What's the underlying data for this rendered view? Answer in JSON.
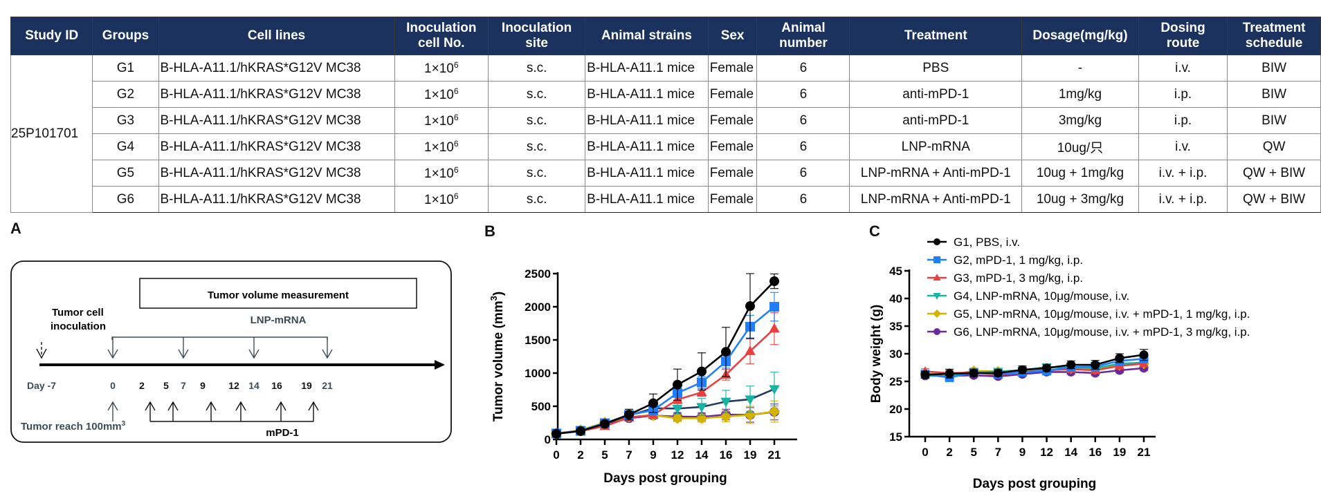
{
  "table": {
    "headers": [
      "Study ID",
      "Groups",
      "Cell lines",
      "Inoculation cell No.",
      "Inoculation site",
      "Animal strains",
      "Sex",
      "Animal number",
      "Treatment",
      "Dosage(mg/kg)",
      "Dosing route",
      "Treatment schedule"
    ],
    "header_lines": [
      [
        "Study ID"
      ],
      [
        "Groups"
      ],
      [
        "Cell lines"
      ],
      [
        "Inoculation",
        "cell No."
      ],
      [
        "Inoculation",
        "site"
      ],
      [
        "Animal strains"
      ],
      [
        "Sex"
      ],
      [
        "Animal",
        "number"
      ],
      [
        "Treatment"
      ],
      [
        "Dosage(mg/kg)"
      ],
      [
        "Dosing",
        "route"
      ],
      [
        "Treatment",
        "schedule"
      ]
    ],
    "study_id": "25P101701",
    "rows": [
      {
        "group": "G1",
        "cell_line": "B-HLA-A11.1/hKRAS*G12V MC38",
        "cell_no_base": "1×10",
        "cell_no_exp": "6",
        "site": "s.c.",
        "strain": "B-HLA-A11.1 mice",
        "sex": "Female",
        "number": "6",
        "treatment": "PBS",
        "dosage": "-",
        "route": "i.v.",
        "schedule": "BIW"
      },
      {
        "group": "G2",
        "cell_line": "B-HLA-A11.1/hKRAS*G12V MC38",
        "cell_no_base": "1×10",
        "cell_no_exp": "6",
        "site": "s.c.",
        "strain": "B-HLA-A11.1 mice",
        "sex": "Female",
        "number": "6",
        "treatment": "anti-mPD-1",
        "dosage": "1mg/kg",
        "route": "i.p.",
        "schedule": "BIW"
      },
      {
        "group": "G3",
        "cell_line": "B-HLA-A11.1/hKRAS*G12V MC38",
        "cell_no_base": "1×10",
        "cell_no_exp": "6",
        "site": "s.c.",
        "strain": "B-HLA-A11.1 mice",
        "sex": "Female",
        "number": "6",
        "treatment": "anti-mPD-1",
        "dosage": "3mg/kg",
        "route": "i.p.",
        "schedule": "BIW"
      },
      {
        "group": "G4",
        "cell_line": "B-HLA-A11.1/hKRAS*G12V MC38",
        "cell_no_base": "1×10",
        "cell_no_exp": "6",
        "site": "s.c.",
        "strain": "B-HLA-A11.1 mice",
        "sex": "Female",
        "number": "6",
        "treatment": "LNP-mRNA",
        "dosage": "10ug/只",
        "route": "i.v.",
        "schedule": "QW"
      },
      {
        "group": "G5",
        "cell_line": "B-HLA-A11.1/hKRAS*G12V MC38",
        "cell_no_base": "1×10",
        "cell_no_exp": "6",
        "site": "s.c.",
        "strain": "B-HLA-A11.1 mice",
        "sex": "Female",
        "number": "6",
        "treatment": "LNP-mRNA  + Anti-mPD-1",
        "dosage": "10ug + 1mg/kg",
        "route": "i.v. + i.p.",
        "schedule": "QW + BIW"
      },
      {
        "group": "G6",
        "cell_line": "B-HLA-A11.1/hKRAS*G12V MC38",
        "cell_no_base": "1×10",
        "cell_no_exp": "6",
        "site": "s.c.",
        "strain": "B-HLA-A11.1 mice",
        "sex": "Female",
        "number": "6",
        "treatment": "LNP-mRNA  + Anti-mPD-1",
        "dosage": "10ug + 3mg/kg",
        "route": "i.v. + i.p.",
        "schedule": "QW + BIW"
      }
    ]
  },
  "panels": {
    "a": "A",
    "b": "B",
    "c": "C"
  },
  "schematic": {
    "measurement_box": "Tumor volume measurement",
    "lnp_label": "LNP-mRNA",
    "inoculation_label_1": "Tumor cell",
    "inoculation_label_2": "inoculation",
    "reach_label": "Tumor reach 100mm",
    "reach_sup": "3",
    "mpd1_label": "mPD-1",
    "days": [
      "Day -7",
      "0",
      "2",
      "5",
      "7",
      "9",
      "12",
      "14",
      "16",
      "19",
      "21"
    ],
    "lnp_days": [
      0,
      7,
      14,
      21
    ],
    "mpd1_days": [
      2,
      5,
      9,
      12,
      16,
      19
    ]
  },
  "chart_data": [
    {
      "type": "line",
      "title": "",
      "xlabel": "Days post grouping",
      "ylabel": "Tumor volume (mm3)",
      "ylabel_main": "Tumor volume (mm",
      "ylabel_sup": "3",
      "ylabel_end": ")",
      "x": [
        0,
        2,
        5,
        7,
        9,
        12,
        14,
        16,
        19,
        21
      ],
      "x_tick_labels": [
        "0",
        "2",
        "5",
        "7",
        "9",
        "12",
        "14",
        "16",
        "19",
        "21"
      ],
      "ylim": [
        0,
        2500
      ],
      "y_ticks": [
        0,
        500,
        1000,
        1500,
        2000,
        2500
      ],
      "grid": false,
      "series": [
        {
          "name": "G1, PBS, i.v.",
          "color": "#000000",
          "marker": "circle",
          "values": [
            85,
            125,
            235,
            375,
            545,
            825,
            1025,
            1320,
            2010,
            2385
          ],
          "errors": [
            10,
            15,
            30,
            80,
            140,
            235,
            280,
            370,
            490,
            110
          ]
        },
        {
          "name": "G2, mPD-1, 1 mg/kg, i.p.",
          "color": "#1f7fff",
          "marker": "square",
          "values": [
            90,
            130,
            245,
            370,
            440,
            700,
            860,
            1175,
            1700,
            2000
          ],
          "errors": [
            10,
            15,
            25,
            40,
            60,
            110,
            90,
            100,
            170,
            215
          ]
        },
        {
          "name": "G3, mPD-1, 3 mg/kg, i.p.",
          "color": "#e8403f",
          "marker": "triangle-up",
          "values": [
            95,
            125,
            200,
            330,
            370,
            600,
            710,
            975,
            1330,
            1670
          ],
          "errors": [
            10,
            15,
            25,
            30,
            40,
            60,
            60,
            80,
            190,
            240
          ]
        },
        {
          "name": "G4, LNP-mRNA, 10μg/mouse, i.v.",
          "color": "#17b3a3",
          "line_color": "#223a63",
          "marker": "triangle-down",
          "values": [
            90,
            130,
            245,
            360,
            470,
            465,
            490,
            570,
            605,
            760
          ],
          "errors": [
            10,
            15,
            25,
            40,
            60,
            80,
            130,
            170,
            200,
            255
          ]
        },
        {
          "name": "G5, LNP-mRNA, 10μg/mouse, i.v. + mPD-1, 1 mg/kg, i.p.",
          "color": "#d4b200",
          "marker": "diamond",
          "values": [
            90,
            140,
            255,
            340,
            365,
            320,
            320,
            345,
            370,
            420
          ],
          "errors": [
            10,
            15,
            25,
            40,
            50,
            50,
            60,
            80,
            130,
            160
          ]
        },
        {
          "name": "G6, LNP-mRNA, 10μg/mouse, i.v. + mPD-1, 3 mg/kg, i.p.",
          "color": "#6a2b9a",
          "marker": "circle",
          "values": [
            90,
            130,
            235,
            320,
            360,
            345,
            340,
            375,
            370,
            415
          ],
          "errors": [
            10,
            15,
            20,
            40,
            50,
            60,
            60,
            80,
            110,
            120
          ]
        }
      ]
    },
    {
      "type": "line",
      "title": "",
      "xlabel": "Days post grouping",
      "ylabel": "Body weight (g)",
      "x": [
        0,
        2,
        5,
        7,
        9,
        12,
        14,
        16,
        19,
        21
      ],
      "x_tick_labels": [
        "0",
        "2",
        "5",
        "7",
        "9",
        "12",
        "14",
        "16",
        "19",
        "21"
      ],
      "ylim": [
        15,
        45
      ],
      "y_ticks": [
        15,
        20,
        25,
        30,
        35,
        40,
        45
      ],
      "grid": false,
      "legend_position": "top",
      "series": [
        {
          "name": "G1, PBS, i.v.",
          "color": "#000000",
          "marker": "circle",
          "values": [
            26.2,
            26.4,
            26.5,
            26.5,
            27.1,
            27.4,
            28.0,
            28.0,
            29.2,
            29.8
          ],
          "errors": [
            0.6,
            0.8,
            0.6,
            0.6,
            0.7,
            0.6,
            0.7,
            0.8,
            0.8,
            1.0
          ]
        },
        {
          "name": "G2, mPD-1, 1 mg/kg, i.p.",
          "color": "#1f7fff",
          "marker": "square",
          "values": [
            26.3,
            25.7,
            26.6,
            26.3,
            26.7,
            26.9,
            27.6,
            27.7,
            28.7,
            29.1
          ],
          "errors": [
            0.5,
            0.5,
            0.5,
            0.5,
            0.5,
            0.5,
            0.5,
            0.5,
            0.6,
            0.6
          ]
        },
        {
          "name": "G3, mPD-1, 3 mg/kg, i.p.",
          "color": "#e8403f",
          "marker": "triangle-up",
          "values": [
            26.8,
            26.5,
            26.6,
            26.2,
            26.7,
            27.0,
            27.2,
            27.0,
            27.8,
            28.2
          ],
          "errors": [
            0.5,
            0.5,
            0.5,
            0.5,
            0.5,
            0.5,
            0.5,
            0.5,
            0.5,
            0.5
          ]
        },
        {
          "name": "G4, LNP-mRNA, 10μg/mouse, i.v.",
          "color": "#17b3a3",
          "marker": "triangle-down",
          "values": [
            26.1,
            25.9,
            26.6,
            26.8,
            27.0,
            27.6,
            27.5,
            27.4,
            28.2,
            28.4
          ],
          "errors": [
            0.5,
            0.5,
            0.5,
            0.5,
            0.5,
            0.5,
            0.5,
            0.5,
            0.5,
            0.5
          ]
        },
        {
          "name": "G5, LNP-mRNA, 10μg/mouse, i.v. + mPD-1, 1 mg/kg, i.p.",
          "color": "#d4b200",
          "marker": "diamond",
          "values": [
            26.4,
            26.2,
            26.9,
            26.8,
            26.9,
            27.1,
            27.3,
            27.2,
            27.9,
            28.2
          ],
          "errors": [
            0.5,
            0.5,
            0.5,
            0.5,
            0.5,
            0.5,
            0.5,
            0.5,
            0.5,
            0.5
          ]
        },
        {
          "name": "G6, LNP-mRNA, 10μg/mouse, i.v. + mPD-1, 3 mg/kg, i.p.",
          "color": "#6a2b9a",
          "marker": "circle",
          "values": [
            26.0,
            26.0,
            26.1,
            25.9,
            26.3,
            26.7,
            26.7,
            26.5,
            27.0,
            27.4
          ],
          "errors": [
            0.4,
            0.4,
            0.4,
            0.4,
            0.4,
            0.4,
            0.4,
            0.4,
            0.4,
            0.4
          ]
        }
      ]
    }
  ]
}
